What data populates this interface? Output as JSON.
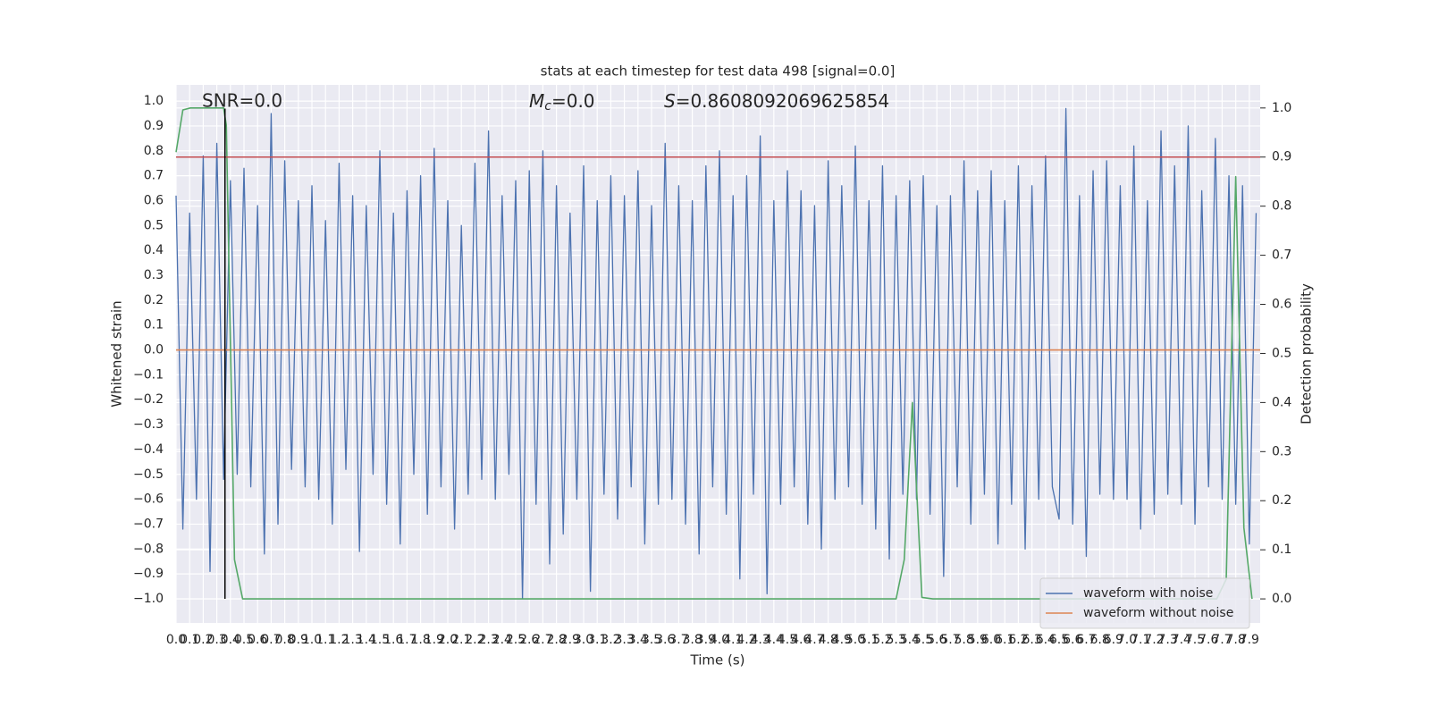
{
  "chart_data": {
    "type": "line",
    "title": "stats at each timestep for test data 498 [signal=0.0]",
    "xlabel": "Time (s)",
    "ylabel": "Whitened strain",
    "y2label": "Detection probability",
    "annotations": [
      {
        "text": "SNR=0.0"
      },
      {
        "symbol": "M",
        "subscript": "c",
        "text": "=0.0"
      },
      {
        "symbol": "S",
        "text": "=0.8608092069625854"
      }
    ],
    "xlim": [
      0,
      7.98
    ],
    "ylim": [
      -1.097,
      1.065
    ],
    "y2lim": [
      -0.049,
      1.047
    ],
    "xticks": [
      {
        "value": 0,
        "label": "0.0"
      },
      0.1,
      0.2,
      0.3,
      0.4,
      0.5,
      0.6,
      0.7,
      0.8,
      0.9,
      {
        "value": 1,
        "label": "1.0"
      },
      1.1,
      1.2,
      1.3,
      1.4,
      1.5,
      1.6,
      1.7,
      1.8,
      1.9,
      {
        "value": 2,
        "label": "2.0"
      },
      2.1,
      2.2,
      2.3,
      2.4,
      2.5,
      2.6,
      2.7,
      2.8,
      2.9,
      {
        "value": 3,
        "label": "3.0"
      },
      3.1,
      3.2,
      3.3,
      3.4,
      3.5,
      3.6,
      3.7,
      3.8,
      3.9,
      {
        "value": 4,
        "label": "4.0"
      },
      4.1,
      4.2,
      4.3,
      4.4,
      4.5,
      4.6,
      4.7,
      4.8,
      4.9,
      {
        "value": 5,
        "label": "5.0"
      },
      5.1,
      5.2,
      5.3,
      5.4,
      5.5,
      5.6,
      5.7,
      5.8,
      5.9,
      {
        "value": 6,
        "label": "6.0"
      },
      6.1,
      6.2,
      6.3,
      6.4,
      6.5,
      6.6,
      6.7,
      6.8,
      6.9,
      {
        "value": 7,
        "label": "7.0"
      },
      7.1,
      7.2,
      7.3,
      7.4,
      7.5,
      7.6,
      7.7,
      7.8,
      7.9
    ],
    "yticks": [
      {
        "value": 1,
        "label": "1.0"
      },
      0.9,
      0.8,
      0.7,
      0.6,
      0.5,
      0.4,
      0.3,
      0.2,
      0.1,
      {
        "value": 0,
        "label": "0.0"
      },
      {
        "value": -0.1,
        "label": "−0.1"
      },
      {
        "value": -0.2,
        "label": "−0.2"
      },
      {
        "value": -0.3,
        "label": "−0.3"
      },
      {
        "value": -0.4,
        "label": "−0.4"
      },
      {
        "value": -0.5,
        "label": "−0.5"
      },
      {
        "value": -0.6,
        "label": "−0.6"
      },
      {
        "value": -0.7,
        "label": "−0.7"
      },
      {
        "value": -0.8,
        "label": "−0.8"
      },
      {
        "value": -0.9,
        "label": "−0.9"
      },
      {
        "value": -1,
        "label": "−1.0"
      }
    ],
    "y2ticks": [
      {
        "value": 1,
        "label": "1.0"
      },
      0.9,
      0.8,
      0.7,
      0.6,
      0.5,
      0.4,
      0.3,
      0.2,
      0.1,
      {
        "value": 0,
        "label": "0.0"
      }
    ],
    "grid": true,
    "legend": "lower right",
    "series": [
      {
        "name": "waveform with noise",
        "color": "#4c72b0",
        "x": [
          0,
          0.05,
          0.1,
          0.15,
          0.2,
          0.25,
          0.3,
          0.35,
          0.4,
          0.45,
          0.5,
          0.55,
          0.6,
          0.65,
          0.7,
          0.75,
          0.8,
          0.85,
          0.9,
          0.95,
          1,
          1.05,
          1.1,
          1.15,
          1.2,
          1.25,
          1.3,
          1.35,
          1.4,
          1.45,
          1.5,
          1.55,
          1.6,
          1.65,
          1.7,
          1.75,
          1.8,
          1.85,
          1.9,
          1.95,
          2,
          2.05,
          2.1,
          2.15,
          2.2,
          2.25,
          2.3,
          2.35,
          2.4,
          2.45,
          2.5,
          2.55,
          2.6,
          2.65,
          2.7,
          2.75,
          2.8,
          2.85,
          2.9,
          2.95,
          3,
          3.05,
          3.1,
          3.15,
          3.2,
          3.25,
          3.3,
          3.35,
          3.4,
          3.45,
          3.5,
          3.55,
          3.6,
          3.65,
          3.7,
          3.75,
          3.8,
          3.85,
          3.9,
          3.95,
          4,
          4.05,
          4.1,
          4.15,
          4.2,
          4.25,
          4.3,
          4.35,
          4.4,
          4.45,
          4.5,
          4.55,
          4.6,
          4.65,
          4.7,
          4.75,
          4.8,
          4.85,
          4.9,
          4.95,
          5,
          5.05,
          5.1,
          5.15,
          5.2,
          5.25,
          5.3,
          5.35,
          5.4,
          5.45,
          5.5,
          5.55,
          5.6,
          5.65,
          5.7,
          5.75,
          5.8,
          5.85,
          5.9,
          5.95,
          6,
          6.05,
          6.1,
          6.15,
          6.2,
          6.25,
          6.3,
          6.35,
          6.4,
          6.45,
          6.5,
          6.55,
          6.6,
          6.65,
          6.7,
          6.75,
          6.8,
          6.85,
          6.9,
          6.95,
          7,
          7.05,
          7.1,
          7.15,
          7.2,
          7.25,
          7.3,
          7.35,
          7.4,
          7.45,
          7.5,
          7.55,
          7.6,
          7.65,
          7.7,
          7.75,
          7.8,
          7.85,
          7.9,
          7.95
        ],
        "values": [
          0.62,
          -0.72,
          0.55,
          -0.6,
          0.78,
          -0.89,
          0.83,
          -0.52,
          0.68,
          -0.5,
          0.73,
          -0.55,
          0.58,
          -0.82,
          0.95,
          -0.7,
          0.76,
          -0.48,
          0.6,
          -0.55,
          0.66,
          -0.6,
          0.52,
          -0.7,
          0.75,
          -0.48,
          0.62,
          -0.81,
          0.58,
          -0.5,
          0.8,
          -0.62,
          0.55,
          -0.78,
          0.64,
          -0.5,
          0.7,
          -0.66,
          0.81,
          -0.55,
          0.6,
          -0.72,
          0.5,
          -0.58,
          0.75,
          -0.52,
          0.88,
          -0.6,
          0.62,
          -0.5,
          0.68,
          -1.0,
          0.72,
          -0.62,
          0.8,
          -0.86,
          0.66,
          -0.74,
          0.55,
          -0.6,
          0.74,
          -0.97,
          0.6,
          -0.58,
          0.7,
          -0.68,
          0.62,
          -0.55,
          0.72,
          -0.78,
          0.58,
          -0.62,
          0.83,
          -0.6,
          0.66,
          -0.7,
          0.6,
          -0.82,
          0.74,
          -0.55,
          0.8,
          -0.66,
          0.62,
          -0.92,
          0.7,
          -0.58,
          0.86,
          -0.98,
          0.6,
          -0.62,
          0.72,
          -0.55,
          0.64,
          -0.7,
          0.58,
          -0.8,
          0.76,
          -0.6,
          0.66,
          -0.55,
          0.82,
          -0.62,
          0.6,
          -0.72,
          0.74,
          -0.84,
          0.62,
          -0.58,
          0.68,
          -0.6,
          0.7,
          -0.66,
          0.58,
          -0.91,
          0.62,
          -0.55,
          0.76,
          -0.7,
          0.64,
          -0.58,
          0.72,
          -0.78,
          0.6,
          -0.62,
          0.74,
          -0.8,
          0.66,
          -0.6,
          0.78,
          -0.55,
          -0.68,
          0.97,
          -0.7,
          0.62,
          -0.83,
          0.72,
          -0.58,
          0.76,
          -0.6,
          0.66,
          -0.6,
          0.82,
          -0.72,
          0.6,
          -0.66,
          0.88,
          -0.58,
          0.74,
          -0.62,
          0.9,
          -0.7,
          0.64,
          -0.55,
          0.85,
          -0.6,
          0.7,
          -0.62,
          0.66,
          -0.78,
          0.55
        ]
      },
      {
        "name": "waveform without noise",
        "color": "#dd8452",
        "x": [
          0,
          7.98
        ],
        "values": [
          0,
          0
        ]
      },
      {
        "color": "#55a868",
        "axis": "y2",
        "x": [
          0,
          0.05,
          0.105,
          0.35,
          0.37,
          0.43,
          0.49,
          5.3,
          5.36,
          5.42,
          5.49,
          5.57,
          7.66,
          7.73,
          7.8,
          7.86,
          7.92
        ],
        "values": [
          0.91,
          0.996,
          1.0,
          1.0,
          0.965,
          0.08,
          0,
          0,
          0.08,
          0.4,
          0.003,
          0,
          0,
          0.04,
          0.86,
          0.145,
          0
        ]
      }
    ],
    "threshold": {
      "value": 0.9,
      "axis": "y2",
      "color": "#c44e52"
    },
    "marker": {
      "x": 0.36,
      "ymin": -1.0,
      "ymax": 0.97,
      "color": "#000000"
    }
  }
}
